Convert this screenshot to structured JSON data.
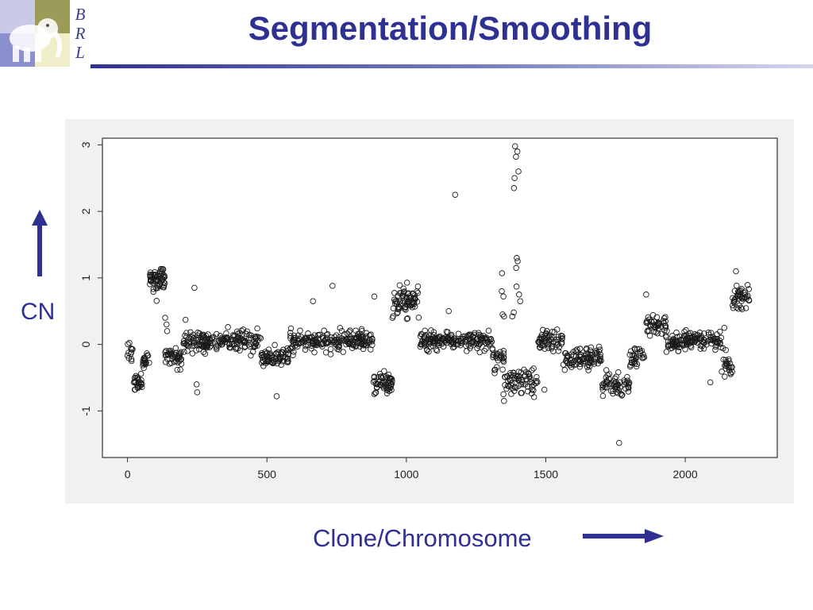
{
  "slide": {
    "title": "Segmentation/Smoothing",
    "logo_letters": [
      "B",
      "R",
      "L"
    ],
    "y_axis_caption": "CN",
    "x_axis_caption": "Clone/Chromosome",
    "accent_color": "#2e3192"
  },
  "chart_data": {
    "type": "scatter",
    "marker": "open-circle",
    "title": "",
    "xlabel": "",
    "ylabel": "",
    "xlim": [
      -90,
      2330
    ],
    "ylim": [
      -1.7,
      3.1
    ],
    "xticks": [
      0,
      500,
      1000,
      1500,
      2000
    ],
    "yticks": [
      -1,
      0,
      1,
      2,
      3
    ],
    "xtick_labels": [
      "0",
      "500",
      "1000",
      "1500",
      "2000"
    ],
    "ytick_labels": [
      "-1",
      "0",
      "1",
      "2",
      "3"
    ],
    "grid": false,
    "segments": [
      {
        "x": [
          0,
          20
        ],
        "mean": -0.15,
        "sd": 0.08,
        "n": 12
      },
      {
        "x": [
          20,
          55
        ],
        "mean": -0.55,
        "sd": 0.06,
        "n": 28
      },
      {
        "x": [
          55,
          80
        ],
        "mean": -0.25,
        "sd": 0.06,
        "n": 20
      },
      {
        "x": [
          80,
          135
        ],
        "mean": 1.0,
        "sd": 0.09,
        "n": 60
      },
      {
        "x": [
          135,
          195
        ],
        "mean": -0.2,
        "sd": 0.07,
        "n": 45
      },
      {
        "x": [
          195,
          480
        ],
        "mean": 0.05,
        "sd": 0.07,
        "n": 190
      },
      {
        "x": [
          480,
          580
        ],
        "mean": -0.2,
        "sd": 0.06,
        "n": 70
      },
      {
        "x": [
          580,
          880
        ],
        "mean": 0.05,
        "sd": 0.07,
        "n": 200
      },
      {
        "x": [
          880,
          950
        ],
        "mean": -0.6,
        "sd": 0.08,
        "n": 55
      },
      {
        "x": [
          950,
          1045
        ],
        "mean": 0.65,
        "sd": 0.1,
        "n": 75
      },
      {
        "x": [
          1045,
          1310
        ],
        "mean": 0.05,
        "sd": 0.07,
        "n": 180
      },
      {
        "x": [
          1310,
          1350
        ],
        "mean": -0.25,
        "sd": 0.09,
        "n": 25
      },
      {
        "x": [
          1350,
          1470
        ],
        "mean": -0.55,
        "sd": 0.1,
        "n": 70
      },
      {
        "x": [
          1470,
          1560
        ],
        "mean": 0.05,
        "sd": 0.07,
        "n": 60
      },
      {
        "x": [
          1560,
          1700
        ],
        "mean": -0.2,
        "sd": 0.08,
        "n": 95
      },
      {
        "x": [
          1700,
          1800
        ],
        "mean": -0.6,
        "sd": 0.08,
        "n": 60
      },
      {
        "x": [
          1800,
          1860
        ],
        "mean": -0.2,
        "sd": 0.1,
        "n": 30
      },
      {
        "x": [
          1860,
          1930
        ],
        "mean": 0.3,
        "sd": 0.08,
        "n": 45
      },
      {
        "x": [
          1930,
          2130
        ],
        "mean": 0.05,
        "sd": 0.07,
        "n": 140
      },
      {
        "x": [
          2130,
          2170
        ],
        "mean": -0.3,
        "sd": 0.1,
        "n": 25
      },
      {
        "x": [
          2170,
          2230
        ],
        "mean": 0.7,
        "sd": 0.1,
        "n": 45
      }
    ],
    "outliers": [
      {
        "x": 1175,
        "y": 2.25
      },
      {
        "x": 1390,
        "y": 2.98
      },
      {
        "x": 1398,
        "y": 2.9
      },
      {
        "x": 1393,
        "y": 2.82
      },
      {
        "x": 1388,
        "y": 2.5
      },
      {
        "x": 1402,
        "y": 2.6
      },
      {
        "x": 1386,
        "y": 2.35
      },
      {
        "x": 1396,
        "y": 1.3
      },
      {
        "x": 1399,
        "y": 1.25
      },
      {
        "x": 1394,
        "y": 1.15
      },
      {
        "x": 1395,
        "y": 0.87
      },
      {
        "x": 1404,
        "y": 0.75
      },
      {
        "x": 1408,
        "y": 0.65
      },
      {
        "x": 1343,
        "y": 1.07
      },
      {
        "x": 1342,
        "y": 0.8
      },
      {
        "x": 1348,
        "y": 0.72
      },
      {
        "x": 1345,
        "y": 0.45
      },
      {
        "x": 1350,
        "y": 0.42
      },
      {
        "x": 1380,
        "y": 0.42
      },
      {
        "x": 1385,
        "y": 0.48
      },
      {
        "x": 1350,
        "y": -0.85
      },
      {
        "x": 1348,
        "y": -0.75
      },
      {
        "x": 1763,
        "y": -1.48
      },
      {
        "x": 1860,
        "y": 0.75
      },
      {
        "x": 2182,
        "y": 1.1
      },
      {
        "x": 735,
        "y": 0.88
      },
      {
        "x": 665,
        "y": 0.65
      },
      {
        "x": 885,
        "y": 0.72
      },
      {
        "x": 240,
        "y": 0.85
      },
      {
        "x": 208,
        "y": 0.37
      },
      {
        "x": 248,
        "y": -0.6
      },
      {
        "x": 250,
        "y": -0.72
      },
      {
        "x": 535,
        "y": -0.78
      },
      {
        "x": 1152,
        "y": 0.5
      },
      {
        "x": 1495,
        "y": -0.68
      },
      {
        "x": 2090,
        "y": -0.57
      },
      {
        "x": 140,
        "y": 0.3
      },
      {
        "x": 135,
        "y": 0.4
      },
      {
        "x": 142,
        "y": 0.2
      },
      {
        "x": 1245,
        "y": 0.17
      },
      {
        "x": 2140,
        "y": 0.25
      }
    ]
  }
}
